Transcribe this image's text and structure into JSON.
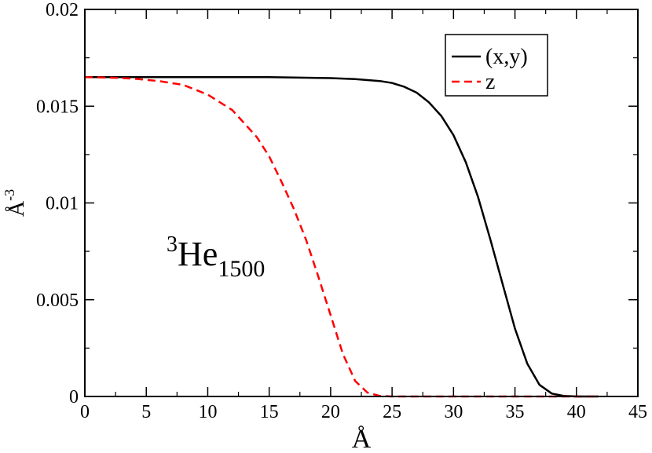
{
  "chart_data": {
    "type": "line",
    "xlabel": "Å",
    "ylabel": {
      "base": "Å",
      "exp": "-3"
    },
    "xlim": [
      0,
      45
    ],
    "ylim": [
      0,
      0.02
    ],
    "x_ticks": [
      "0",
      "5",
      "10",
      "15",
      "20",
      "25",
      "30",
      "35",
      "40",
      "45"
    ],
    "y_ticks": [
      "0",
      "0.005",
      "0.01",
      "0.015",
      "0.02"
    ],
    "grid": false,
    "legend_position": "top-right",
    "annotation": {
      "sup": "3",
      "base": "He",
      "sub": "1500"
    },
    "series": [
      {
        "name": "(x,y)",
        "color": "#000000",
        "dash": "solid",
        "x": [
          0,
          5,
          10,
          15,
          20,
          22,
          24,
          25,
          26,
          27,
          28,
          29,
          30,
          31,
          32,
          33,
          34,
          35,
          36,
          37,
          38,
          39,
          40,
          41,
          41.8
        ],
        "y": [
          0.0165,
          0.0165,
          0.0165,
          0.0165,
          0.01645,
          0.0164,
          0.0163,
          0.0162,
          0.016,
          0.0157,
          0.0152,
          0.0145,
          0.0135,
          0.0121,
          0.0103,
          0.0081,
          0.0058,
          0.0035,
          0.0017,
          0.0006,
          0.00015,
          3e-05,
          0.0,
          0.0,
          0.0
        ]
      },
      {
        "name": "z",
        "color": "#ff0000",
        "dash": "dashed",
        "x": [
          0,
          2,
          4,
          6,
          8,
          10,
          12,
          14,
          15,
          16,
          17,
          18,
          19,
          20,
          21,
          22,
          23,
          24,
          25,
          30,
          35,
          40,
          41.8
        ],
        "y": [
          0.0165,
          0.01648,
          0.01642,
          0.0163,
          0.0161,
          0.0156,
          0.0148,
          0.0134,
          0.0124,
          0.0111,
          0.0097,
          0.0081,
          0.0062,
          0.0042,
          0.0022,
          0.0008,
          0.0002,
          3e-05,
          0.0,
          0.0,
          0.0,
          0.0,
          0.0
        ]
      }
    ]
  }
}
